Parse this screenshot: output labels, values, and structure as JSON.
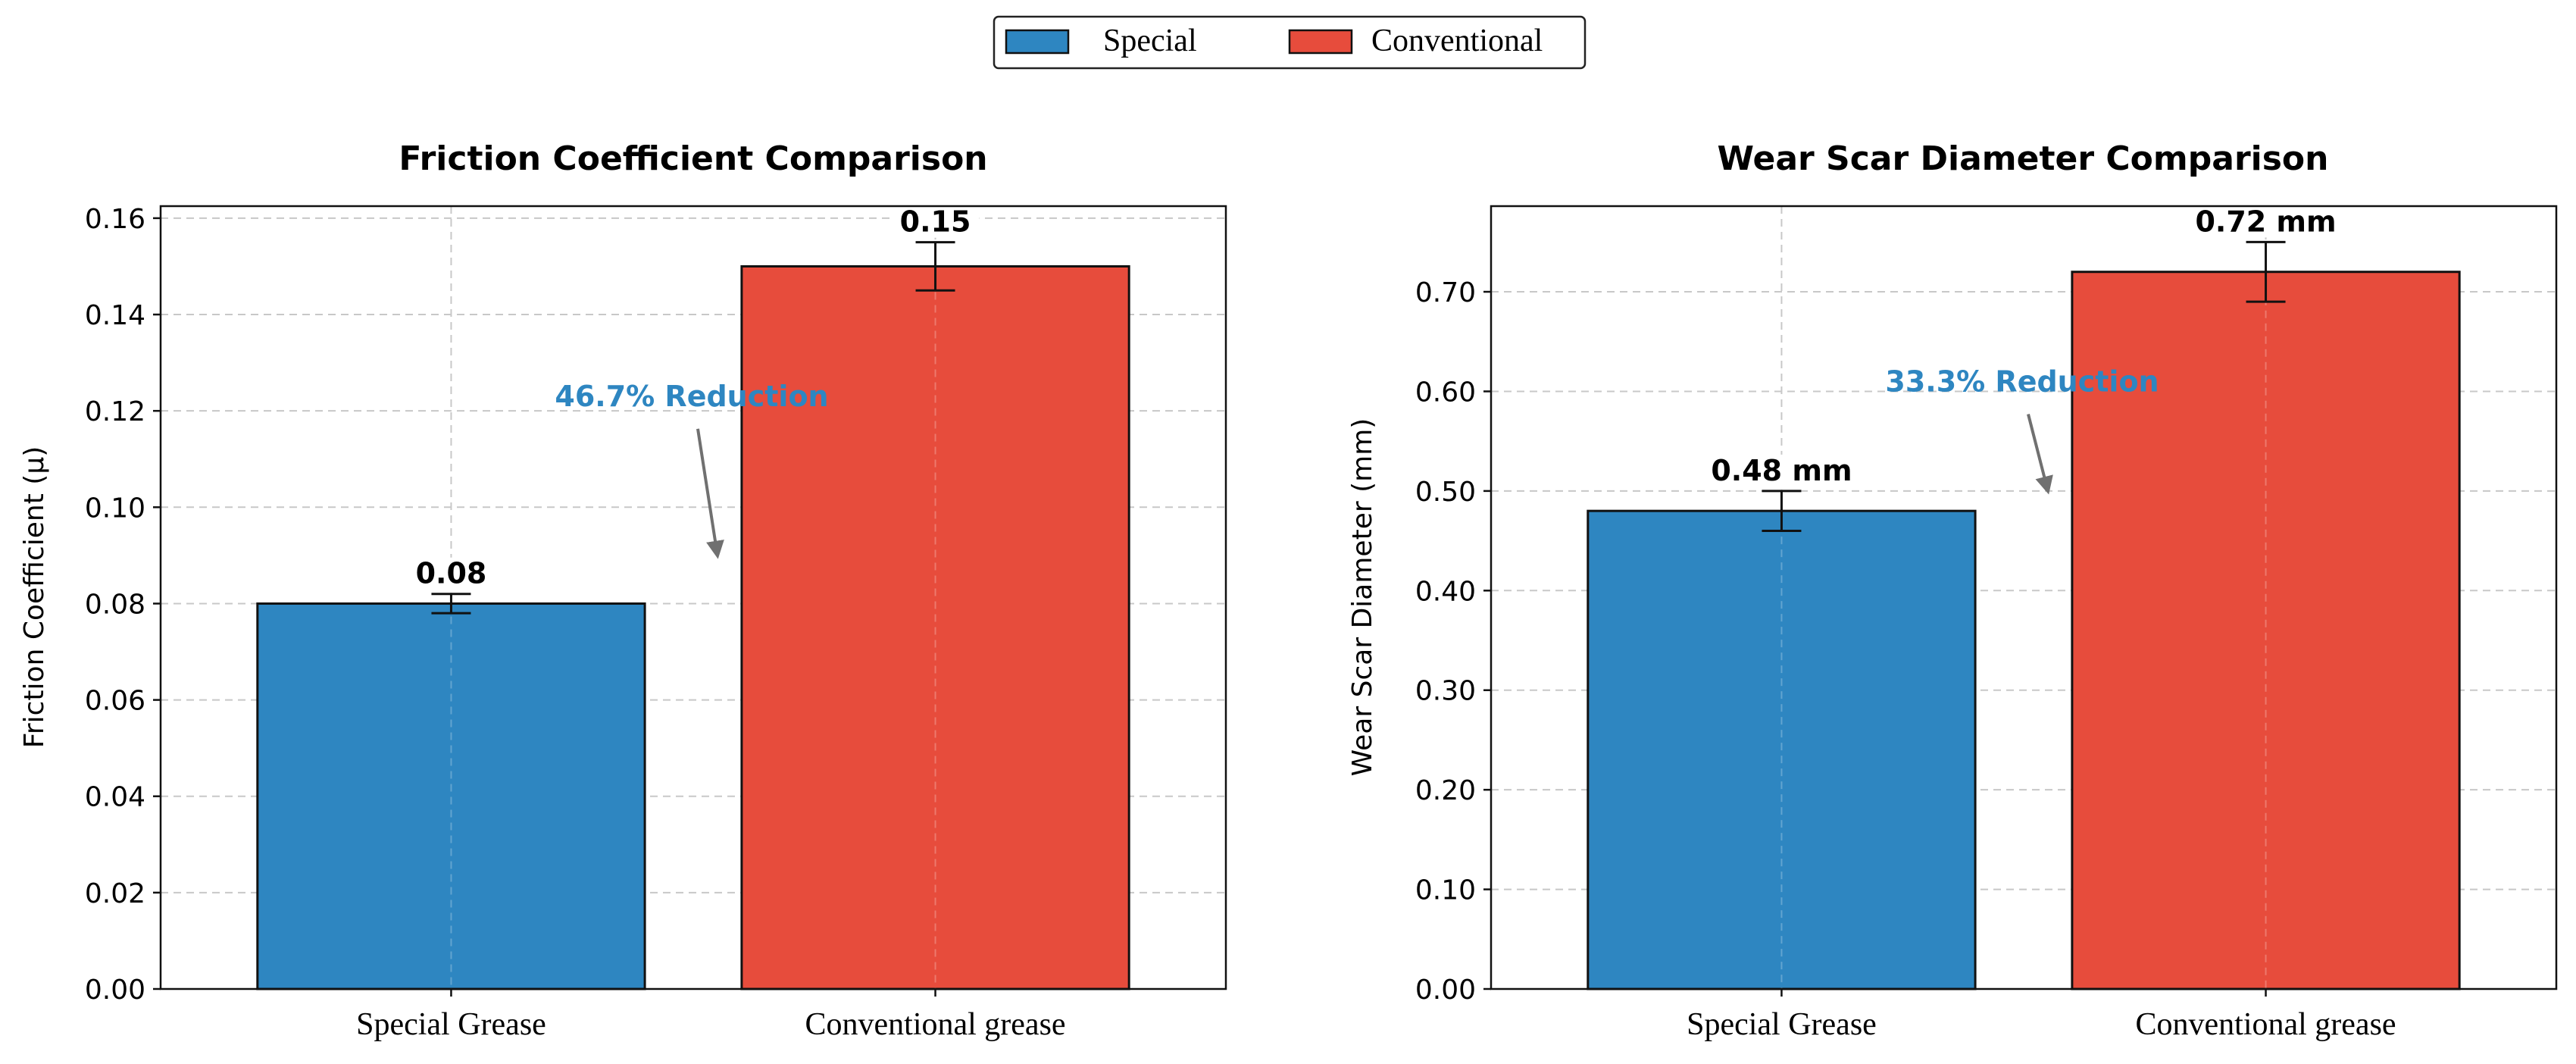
{
  "legend": {
    "items": [
      {
        "label": "Special",
        "color": "#2e86c1"
      },
      {
        "label": "Conventional",
        "color": "#e74c3c"
      }
    ]
  },
  "colors": {
    "special": "#2e86c1",
    "conventional": "#e74c3c",
    "annotation": "#2e86c1",
    "arrow": "#707070",
    "grid": "#c8c8c8"
  },
  "chart_data": [
    {
      "type": "bar",
      "title": "Friction Coefficient Comparison",
      "xlabel": "",
      "ylabel": "Friction Coefficient (μ)",
      "categories": [
        "Special Grease",
        "Conventional grease"
      ],
      "values": [
        0.08,
        0.15
      ],
      "errors": [
        0.002,
        0.005
      ],
      "value_labels": [
        "0.08",
        "0.15"
      ],
      "ylim": [
        0,
        0.1625
      ],
      "yticks": [
        0,
        0.02,
        0.04,
        0.06,
        0.08,
        0.1,
        0.12,
        0.14,
        0.16
      ],
      "ytick_labels": [
        "0.00",
        "0.02",
        "0.04",
        "0.06",
        "0.08",
        "0.10",
        "0.12",
        "0.14",
        "0.16"
      ],
      "grid": true,
      "annotation": {
        "text": "46.7% Reduction",
        "text_pos": [
          0.5,
          0.121
        ],
        "arrow_to": [
          0.55,
          0.09
        ]
      }
    },
    {
      "type": "bar",
      "title": "Wear Scar Diameter Comparison",
      "xlabel": "",
      "ylabel": "Wear Scar Diameter (mm)",
      "categories": [
        "Special Grease",
        "Conventional grease"
      ],
      "values": [
        0.48,
        0.72
      ],
      "errors": [
        0.02,
        0.03
      ],
      "value_labels": [
        "0.48 mm",
        "0.72 mm"
      ],
      "ylim": [
        0,
        0.786
      ],
      "yticks": [
        0,
        0.1,
        0.2,
        0.3,
        0.4,
        0.5,
        0.6,
        0.7
      ],
      "ytick_labels": [
        "0.00",
        "0.10",
        "0.20",
        "0.30",
        "0.40",
        "0.50",
        "0.60",
        "0.70"
      ],
      "grid": true,
      "annotation": {
        "text": "33.3% Reduction",
        "text_pos": [
          0.5,
          0.6
        ],
        "arrow_to": [
          0.55,
          0.5
        ]
      }
    }
  ]
}
